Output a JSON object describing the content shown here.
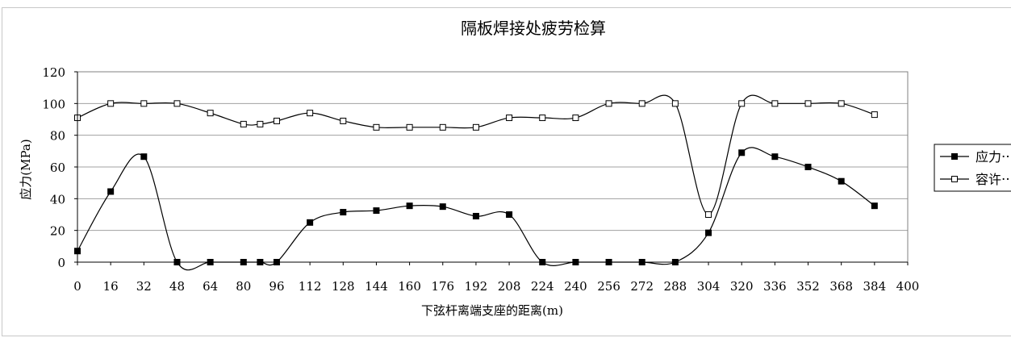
{
  "chart_data": {
    "type": "line",
    "title": "隔板焊接处疲劳检算",
    "xlabel": "下弦杆离端支座的距离(m)",
    "ylabel": "应力(MPa)",
    "xlim": [
      0,
      400
    ],
    "ylim": [
      0,
      120
    ],
    "xticks": [
      0,
      16,
      32,
      48,
      64,
      80,
      96,
      112,
      128,
      144,
      160,
      176,
      192,
      208,
      224,
      240,
      256,
      272,
      288,
      304,
      320,
      336,
      352,
      368,
      384,
      400
    ],
    "yticks": [
      0,
      20,
      40,
      60,
      80,
      100,
      120
    ],
    "grid": "horizontal",
    "legend_position": "right",
    "series": [
      {
        "name": "应力⋯",
        "marker": "filled-square",
        "color": "#000000",
        "x": [
          0,
          16,
          32,
          48,
          64,
          80,
          88,
          96,
          112,
          128,
          144,
          160,
          176,
          192,
          208,
          224,
          240,
          256,
          272,
          288,
          304,
          320,
          336,
          352,
          368,
          384
        ],
        "y": [
          7,
          44.5,
          66.5,
          0,
          0,
          0,
          0,
          0,
          25,
          31.5,
          32.5,
          35.5,
          35,
          29,
          30,
          0,
          0,
          0,
          0,
          0,
          18.5,
          69,
          66.5,
          60,
          51,
          35.5
        ]
      },
      {
        "name": "容许⋯",
        "marker": "open-square",
        "color": "#000000",
        "x": [
          0,
          16,
          32,
          48,
          64,
          80,
          88,
          96,
          112,
          128,
          144,
          160,
          176,
          192,
          208,
          224,
          240,
          256,
          272,
          288,
          304,
          320,
          336,
          352,
          368,
          384
        ],
        "y": [
          91,
          100,
          100,
          100,
          94,
          87,
          87,
          89,
          94,
          89,
          85,
          85,
          85,
          85,
          91,
          91,
          91,
          100,
          100,
          100,
          30,
          100,
          100,
          100,
          100,
          93
        ]
      }
    ]
  }
}
